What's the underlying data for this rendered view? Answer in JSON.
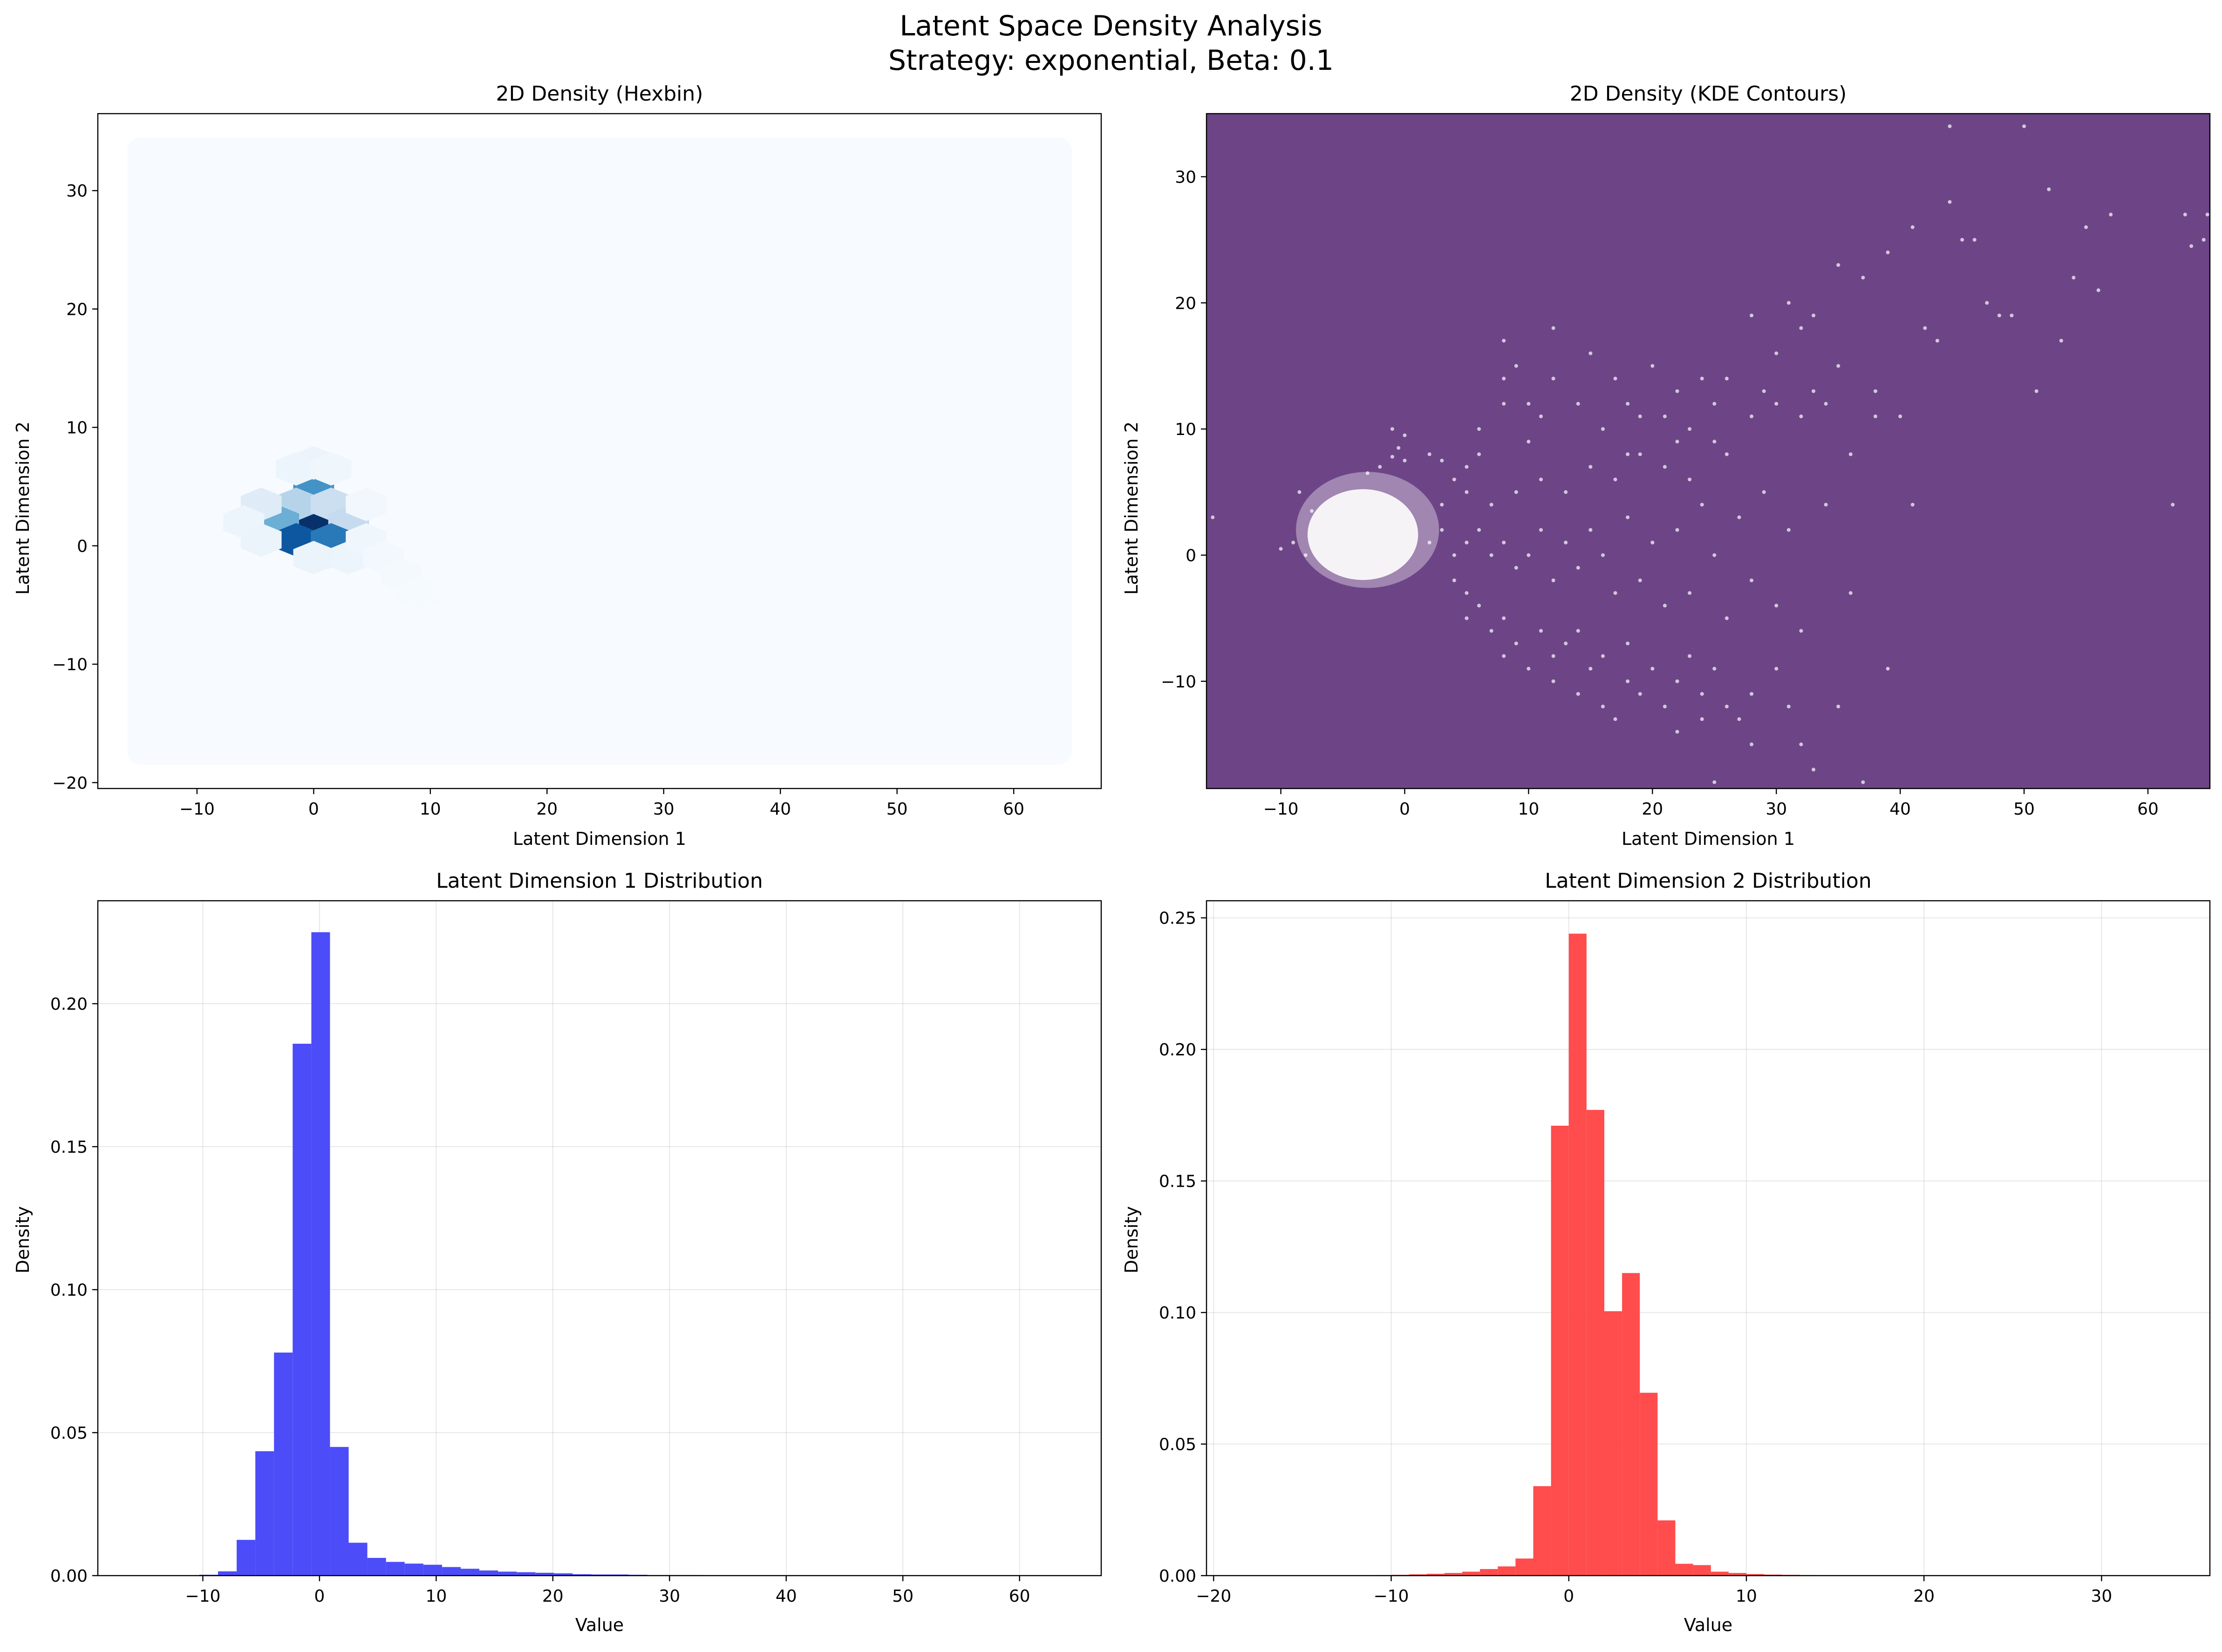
{
  "figure": {
    "title_line1": "Latent Space Density Analysis",
    "title_line2": "Strategy: exponential, Beta: 0.1"
  },
  "chart_data": [
    {
      "type": "heatmap",
      "subtype": "hexbin",
      "title": "2D Density (Hexbin)",
      "xlabel": "Latent Dimension 1",
      "ylabel": "Latent Dimension 2",
      "xlim": [
        -18.5,
        67.5
      ],
      "ylim": [
        -20.5,
        36.5
      ],
      "xticks": [
        -10,
        0,
        10,
        20,
        30,
        40,
        50,
        60
      ],
      "yticks": [
        -20,
        -10,
        0,
        10,
        20,
        30
      ],
      "grid": false,
      "colormap": "Blues",
      "background_color": "#f7fbff",
      "extent": {
        "x": [
          -16,
          65
        ],
        "y": [
          -18.5,
          34.5
        ]
      },
      "bins": [
        {
          "x": 0,
          "y": 2,
          "level": 1.0
        },
        {
          "x": 0,
          "y": 5,
          "level": 0.62
        },
        {
          "x": -1.5,
          "y": 3.5,
          "level": 0.3
        },
        {
          "x": 1.5,
          "y": 3.5,
          "level": 0.22
        },
        {
          "x": -3,
          "y": 2,
          "level": 0.5
        },
        {
          "x": 3,
          "y": 2,
          "level": 0.25
        },
        {
          "x": -1.5,
          "y": 0.5,
          "level": 0.85
        },
        {
          "x": 1.5,
          "y": 0.5,
          "level": 0.72
        },
        {
          "x": -4.5,
          "y": 3.5,
          "level": 0.12
        },
        {
          "x": -6,
          "y": 2,
          "level": 0.05
        },
        {
          "x": -4.5,
          "y": 0.5,
          "level": 0.06
        },
        {
          "x": 0,
          "y": 7,
          "level": 0.06
        },
        {
          "x": -1.5,
          "y": 6.5,
          "level": 0.05
        },
        {
          "x": 1.5,
          "y": 6.5,
          "level": 0.04
        },
        {
          "x": 3,
          "y": -1,
          "level": 0.05
        },
        {
          "x": 0,
          "y": -1,
          "level": 0.06
        },
        {
          "x": 4.5,
          "y": 0.5,
          "level": 0.04
        },
        {
          "x": 4.5,
          "y": 3.5,
          "level": 0.03
        },
        {
          "x": 6,
          "y": -1,
          "level": 0.02
        },
        {
          "x": 7.5,
          "y": -2.5,
          "level": 0.015
        },
        {
          "x": 9,
          "y": -4,
          "level": 0.01
        }
      ]
    },
    {
      "type": "scatter",
      "title": "2D Density (KDE Contours)",
      "xlabel": "Latent Dimension 1",
      "ylabel": "Latent Dimension 2",
      "xlim": [
        -16,
        65
      ],
      "ylim": [
        -18.5,
        35
      ],
      "xticks": [
        -10,
        0,
        10,
        20,
        30,
        40,
        50,
        60
      ],
      "yticks": [
        -10,
        0,
        10,
        20,
        30
      ],
      "grid": false,
      "background_color": "#6d4587",
      "point_color": "#ffffff",
      "dense_core": {
        "x": [
          -7.5,
          3
        ],
        "y": [
          -2,
          6
        ]
      },
      "points": [
        [
          -9,
          1
        ],
        [
          -8,
          0
        ],
        [
          -7.5,
          3.5
        ],
        [
          -15.5,
          3
        ],
        [
          -10,
          0.5
        ],
        [
          -8.5,
          5
        ],
        [
          -1,
          10
        ],
        [
          0,
          9.5
        ],
        [
          -0.5,
          8.5
        ],
        [
          -1,
          7.8
        ],
        [
          0,
          7.5
        ],
        [
          -2,
          7
        ],
        [
          -3,
          6.5
        ],
        [
          2,
          8
        ],
        [
          3,
          7.5
        ],
        [
          4,
          6
        ],
        [
          5,
          7
        ],
        [
          6,
          8
        ],
        [
          6,
          10
        ],
        [
          8,
          12
        ],
        [
          8,
          14
        ],
        [
          8,
          17
        ],
        [
          9,
          15
        ],
        [
          10,
          12
        ],
        [
          10,
          9
        ],
        [
          11,
          11
        ],
        [
          12,
          14
        ],
        [
          12,
          18
        ],
        [
          14,
          12
        ],
        [
          15,
          16
        ],
        [
          16,
          10
        ],
        [
          17,
          14
        ],
        [
          18,
          12
        ],
        [
          18,
          8
        ],
        [
          19,
          11
        ],
        [
          20,
          15
        ],
        [
          21,
          11
        ],
        [
          22,
          9
        ],
        [
          22,
          13
        ],
        [
          23,
          10
        ],
        [
          24,
          14
        ],
        [
          25,
          12
        ],
        [
          26,
          8
        ],
        [
          26,
          14
        ],
        [
          28,
          11
        ],
        [
          28,
          19
        ],
        [
          29,
          13
        ],
        [
          30,
          12
        ],
        [
          30,
          16
        ],
        [
          31,
          20
        ],
        [
          32,
          11
        ],
        [
          32,
          18
        ],
        [
          33,
          13
        ],
        [
          33,
          19
        ],
        [
          34,
          12
        ],
        [
          35,
          15
        ],
        [
          35,
          23
        ],
        [
          36,
          8
        ],
        [
          37,
          22
        ],
        [
          38,
          11
        ],
        [
          38,
          13
        ],
        [
          39,
          24
        ],
        [
          40,
          11
        ],
        [
          41,
          26
        ],
        [
          41,
          4
        ],
        [
          42,
          18
        ],
        [
          43,
          17
        ],
        [
          44,
          28
        ],
        [
          44,
          34
        ],
        [
          45,
          25
        ],
        [
          46,
          25
        ],
        [
          47,
          20
        ],
        [
          48,
          19
        ],
        [
          49,
          19
        ],
        [
          50,
          34
        ],
        [
          51,
          13
        ],
        [
          52,
          29
        ],
        [
          53,
          17
        ],
        [
          54,
          22
        ],
        [
          55,
          26
        ],
        [
          56,
          21
        ],
        [
          57,
          27
        ],
        [
          62,
          4
        ],
        [
          63,
          27
        ],
        [
          63.5,
          24.5
        ],
        [
          64.5,
          25
        ],
        [
          64.8,
          27
        ],
        [
          4,
          -2
        ],
        [
          5,
          -3
        ],
        [
          5,
          -5
        ],
        [
          6,
          -4
        ],
        [
          7,
          -6
        ],
        [
          8,
          -5
        ],
        [
          8,
          -8
        ],
        [
          9,
          -7
        ],
        [
          10,
          -9
        ],
        [
          11,
          -6
        ],
        [
          12,
          -8
        ],
        [
          12,
          -10
        ],
        [
          13,
          -7
        ],
        [
          14,
          -11
        ],
        [
          14,
          -6
        ],
        [
          15,
          -9
        ],
        [
          16,
          -12
        ],
        [
          16,
          -8
        ],
        [
          17,
          -13
        ],
        [
          18,
          -10
        ],
        [
          18,
          -7
        ],
        [
          19,
          -11
        ],
        [
          20,
          -9
        ],
        [
          21,
          -12
        ],
        [
          22,
          -10
        ],
        [
          22,
          -14
        ],
        [
          23,
          -8
        ],
        [
          24,
          -11
        ],
        [
          24,
          -13
        ],
        [
          25,
          -18
        ],
        [
          25,
          -9
        ],
        [
          26,
          -12
        ],
        [
          27,
          -13
        ],
        [
          28,
          -11
        ],
        [
          28,
          -15
        ],
        [
          30,
          -9
        ],
        [
          31,
          -12
        ],
        [
          32,
          -15
        ],
        [
          33,
          -17
        ],
        [
          35,
          -12
        ],
        [
          37,
          -18
        ],
        [
          39,
          -9
        ],
        [
          2,
          1
        ],
        [
          3,
          2
        ],
        [
          4,
          0
        ],
        [
          5,
          1
        ],
        [
          6,
          2
        ],
        [
          7,
          0
        ],
        [
          8,
          1
        ],
        [
          9,
          -1
        ],
        [
          10,
          0
        ],
        [
          11,
          2
        ],
        [
          12,
          -2
        ],
        [
          13,
          1
        ],
        [
          14,
          -1
        ],
        [
          15,
          2
        ],
        [
          16,
          0
        ],
        [
          17,
          -3
        ],
        [
          18,
          3
        ],
        [
          19,
          -2
        ],
        [
          20,
          1
        ],
        [
          21,
          -4
        ],
        [
          22,
          2
        ],
        [
          23,
          -3
        ],
        [
          24,
          4
        ],
        [
          25,
          0
        ],
        [
          26,
          -5
        ],
        [
          27,
          3
        ],
        [
          28,
          -2
        ],
        [
          29,
          5
        ],
        [
          30,
          -4
        ],
        [
          31,
          2
        ],
        [
          32,
          -6
        ],
        [
          34,
          4
        ],
        [
          36,
          -3
        ],
        [
          3,
          4
        ],
        [
          5,
          5
        ],
        [
          7,
          4
        ],
        [
          9,
          5
        ],
        [
          11,
          6
        ],
        [
          13,
          5
        ],
        [
          15,
          7
        ],
        [
          17,
          6
        ],
        [
          19,
          8
        ],
        [
          21,
          7
        ],
        [
          23,
          6
        ],
        [
          25,
          9
        ]
      ]
    },
    {
      "type": "bar",
      "subtype": "histogram",
      "title": "Latent Dimension 1 Distribution",
      "xlabel": "Value",
      "ylabel": "Density",
      "xlim": [
        -19,
        67
      ],
      "ylim": [
        0,
        0.236
      ],
      "xticks": [
        -10,
        0,
        10,
        20,
        30,
        40,
        50,
        60
      ],
      "yticks": [
        0.0,
        0.05,
        0.1,
        0.15,
        0.2
      ],
      "yticks_labels": [
        "0.00",
        "0.05",
        "0.10",
        "0.15",
        "0.20"
      ],
      "grid": true,
      "color": "#4c4cf8",
      "bins": [
        [
          -10.3,
          -8.7,
          0.0003
        ],
        [
          -8.7,
          -7.1,
          0.0015
        ],
        [
          -7.1,
          -5.5,
          0.0125
        ],
        [
          -5.5,
          -3.9,
          0.0435
        ],
        [
          -3.9,
          -2.3,
          0.078
        ],
        [
          -2.3,
          -0.7,
          0.186
        ],
        [
          -0.7,
          0.9,
          0.225
        ],
        [
          0.9,
          2.5,
          0.045
        ],
        [
          2.5,
          4.1,
          0.0115
        ],
        [
          4.1,
          5.7,
          0.0062
        ],
        [
          5.7,
          7.3,
          0.0048
        ],
        [
          7.3,
          8.9,
          0.0042
        ],
        [
          8.9,
          10.5,
          0.0038
        ],
        [
          10.5,
          12.1,
          0.003
        ],
        [
          12.1,
          13.7,
          0.0024
        ],
        [
          13.7,
          15.3,
          0.0018
        ],
        [
          15.3,
          16.9,
          0.0014
        ],
        [
          16.9,
          18.5,
          0.0012
        ],
        [
          18.5,
          20.1,
          0.001
        ],
        [
          20.1,
          21.7,
          0.0008
        ],
        [
          21.7,
          23.3,
          0.0005
        ],
        [
          23.3,
          24.9,
          0.0004
        ],
        [
          24.9,
          26.5,
          0.0004
        ],
        [
          26.5,
          28.1,
          0.0003
        ],
        [
          28.1,
          29.7,
          0.0002
        ],
        [
          29.7,
          31.3,
          0.0002
        ],
        [
          31.3,
          32.9,
          0.0002
        ]
      ]
    },
    {
      "type": "bar",
      "subtype": "histogram",
      "title": "Latent Dimension 2 Distribution",
      "xlabel": "Value",
      "ylabel": "Density",
      "xlim": [
        -20.4,
        36.1
      ],
      "ylim": [
        0,
        0.2565
      ],
      "xticks": [
        -20,
        -10,
        0,
        10,
        20,
        30
      ],
      "yticks": [
        0.0,
        0.05,
        0.1,
        0.15,
        0.2,
        0.25
      ],
      "yticks_labels": [
        "0.00",
        "0.05",
        "0.10",
        "0.15",
        "0.20",
        "0.25"
      ],
      "grid": true,
      "color": "#ff4c4c",
      "bins": [
        [
          -11,
          -10,
          0.0002
        ],
        [
          -10,
          -9,
          0.0003
        ],
        [
          -9,
          -8,
          0.0005
        ],
        [
          -8,
          -7,
          0.0007
        ],
        [
          -7,
          -6,
          0.001
        ],
        [
          -6,
          -5,
          0.0015
        ],
        [
          -5,
          -4,
          0.0025
        ],
        [
          -4,
          -3,
          0.0035
        ],
        [
          -3,
          -2,
          0.0065
        ],
        [
          -2,
          -1,
          0.034
        ],
        [
          -1,
          0,
          0.171
        ],
        [
          0,
          1,
          0.244
        ],
        [
          1,
          2,
          0.177
        ],
        [
          2,
          3,
          0.1005
        ],
        [
          3,
          4,
          0.115
        ],
        [
          4,
          5,
          0.0695
        ],
        [
          5,
          6,
          0.021
        ],
        [
          6,
          7,
          0.0045
        ],
        [
          7,
          8,
          0.004
        ],
        [
          8,
          9,
          0.0015
        ],
        [
          9,
          10,
          0.001
        ],
        [
          10,
          11,
          0.0006
        ],
        [
          11,
          12,
          0.0004
        ],
        [
          12,
          13,
          0.0003
        ],
        [
          13,
          14,
          0.0002
        ]
      ]
    }
  ]
}
